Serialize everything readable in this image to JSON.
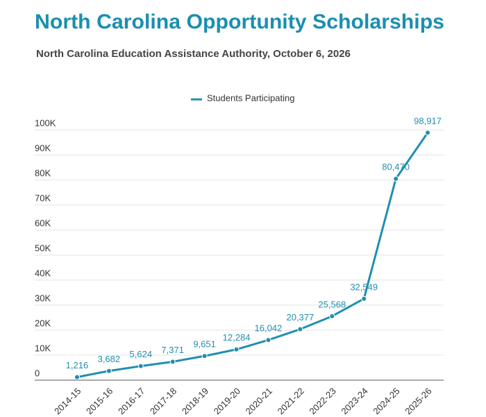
{
  "chart_data": {
    "type": "line",
    "title": "North Carolina Opportunity Scholarships",
    "subtitle": "North Carolina Education Assistance Authority, October 6, 2026",
    "categories": [
      "2014-15",
      "2015-16",
      "2016-17",
      "2017-18",
      "2018-19",
      "2019-20",
      "2020-21",
      "2021-22",
      "2022-23",
      "2023-24",
      "2024-25",
      "2025-26"
    ],
    "series": [
      {
        "name": "Students Participating",
        "color": "#1f8fb0",
        "values": [
          1216,
          3682,
          5624,
          7371,
          9651,
          12284,
          16042,
          20377,
          25568,
          32549,
          80470,
          98917
        ],
        "value_labels": [
          "1,216",
          "3,682",
          "5,624",
          "7,371",
          "9,651",
          "12,284",
          "16,042",
          "20,377",
          "25,568",
          "32,549",
          "80,470",
          "98,917"
        ]
      }
    ],
    "ylim": [
      0,
      100000
    ],
    "yticks": [
      0,
      {
        "value": 10000,
        "label": "10K"
      },
      {
        "value": 20000,
        "label": "20K"
      },
      {
        "value": 30000,
        "label": "30K"
      },
      {
        "value": 40000,
        "label": "40K"
      },
      {
        "value": 50000,
        "label": "50K"
      },
      {
        "value": 60000,
        "label": "60K"
      },
      {
        "value": 70000,
        "label": "70K"
      },
      {
        "value": 80000,
        "label": "80K"
      },
      {
        "value": 90000,
        "label": "90K"
      },
      {
        "value": 100000,
        "label": "100K"
      }
    ],
    "grid": true,
    "legend": "top"
  }
}
